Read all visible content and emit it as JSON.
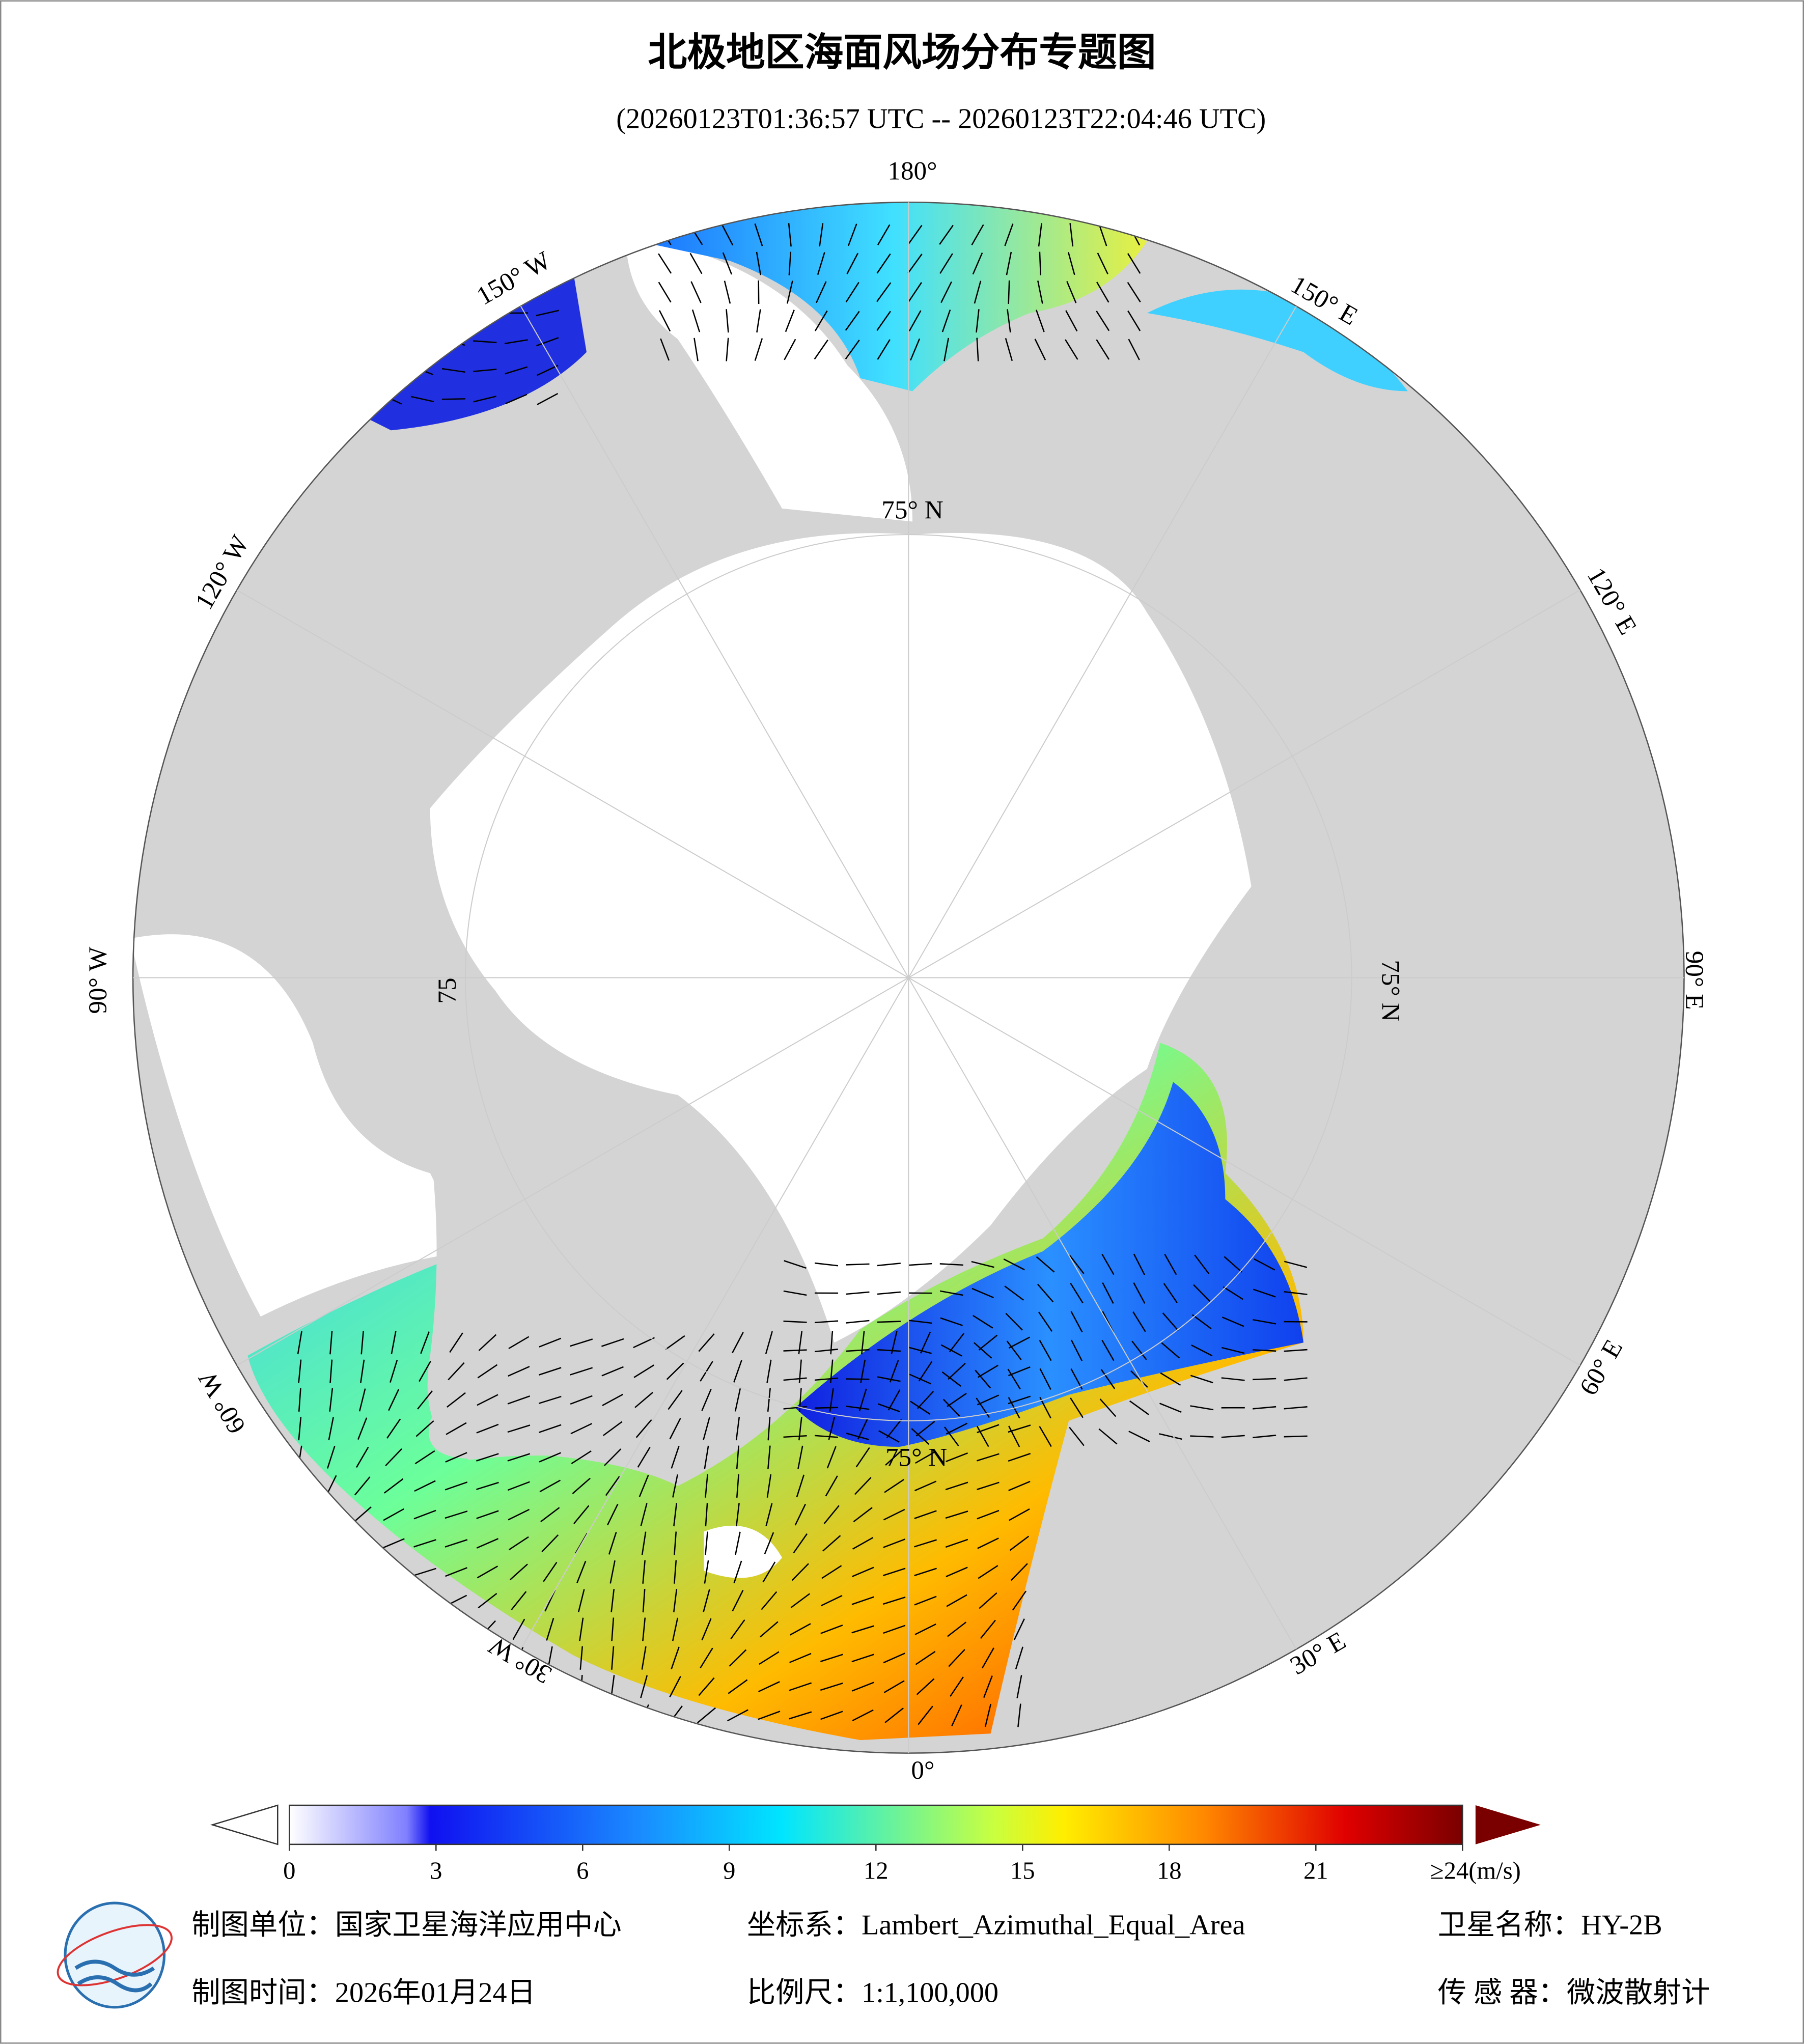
{
  "header": {
    "title": "北极地区海面风场分布专题图",
    "subtitle": "(20260123T01:36:57 UTC -- 20260123T22:04:46 UTC)"
  },
  "map": {
    "longitude_labels": [
      "180°",
      "150° W",
      "120° W",
      "90° W",
      "60° W",
      "30° W",
      "0°",
      "30° E",
      "60° E",
      "90° E",
      "120° E",
      "150° E"
    ],
    "latitude_labels": [
      "75° N",
      "75° N",
      "75",
      "75° N"
    ]
  },
  "colorbar": {
    "range": [
      0,
      24
    ],
    "ticks": [
      0,
      3,
      6,
      9,
      12,
      15,
      18,
      21,
      {
        "value": 24,
        "label": "≥24(m/s)"
      }
    ]
  },
  "footer": {
    "unit": "制图单位：国家卫星海洋应用中心",
    "coords": "坐标系：Lambert_Azimuthal_Equal_Area",
    "satellite": "卫星名称：HY-2B",
    "date": "制图时间：2026年01月24日",
    "scale": "比例尺：1:1,100,000",
    "sensor": "传 感 器：微波散射计"
  }
}
